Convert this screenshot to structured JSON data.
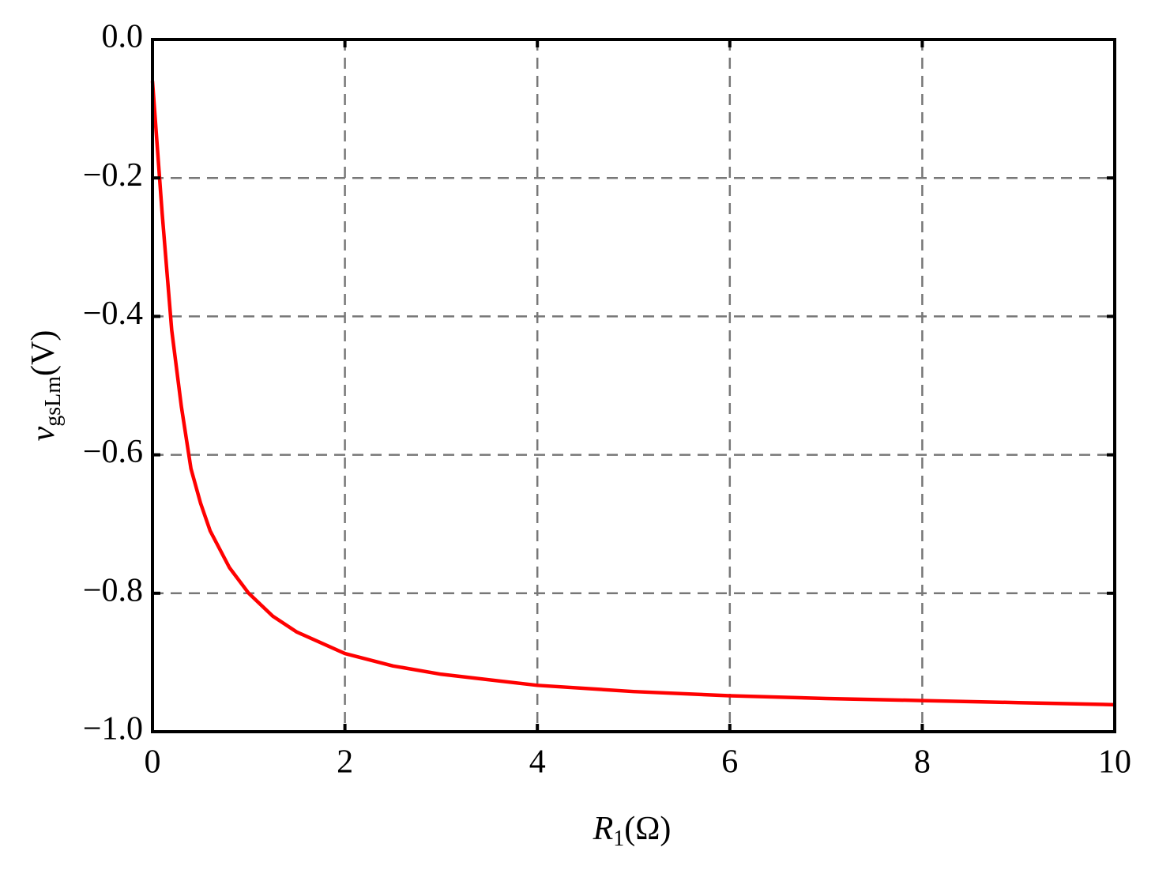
{
  "chart_data": {
    "type": "line",
    "x_label": {
      "symbol": "R",
      "subscript": "1",
      "unit": "(Ω)"
    },
    "y_label": {
      "symbol": "v",
      "subscript": "gsLm",
      "unit": "(V)"
    },
    "x": [
      0,
      0.1,
      0.2,
      0.3,
      0.4,
      0.5,
      0.6,
      0.8,
      1,
      1.25,
      1.5,
      2,
      2.5,
      3,
      4,
      5,
      6,
      7,
      8,
      9,
      10
    ],
    "series": [
      {
        "color": "#ff0000",
        "values": [
          -0.06,
          -0.25,
          -0.42,
          -0.53,
          -0.62,
          -0.67,
          -0.71,
          -0.763,
          -0.8,
          -0.833,
          -0.856,
          -0.887,
          -0.905,
          -0.917,
          -0.933,
          -0.942,
          -0.948,
          -0.952,
          -0.955,
          -0.958,
          -0.961
        ]
      }
    ],
    "xlim": [
      0,
      10
    ],
    "xticks": [
      0,
      2,
      4,
      6,
      8,
      10
    ],
    "ylim": [
      -1.0,
      0.0
    ],
    "yticks": [
      {
        "value": 0.0,
        "label": "0.0"
      },
      {
        "value": -0.2,
        "label": "−0.2"
      },
      {
        "value": -0.4,
        "label": "−0.4"
      },
      {
        "value": -0.6,
        "label": "−0.6"
      },
      {
        "value": -0.8,
        "label": "−0.8"
      },
      {
        "value": -1.0,
        "label": "−1.0"
      }
    ],
    "grid": true
  }
}
